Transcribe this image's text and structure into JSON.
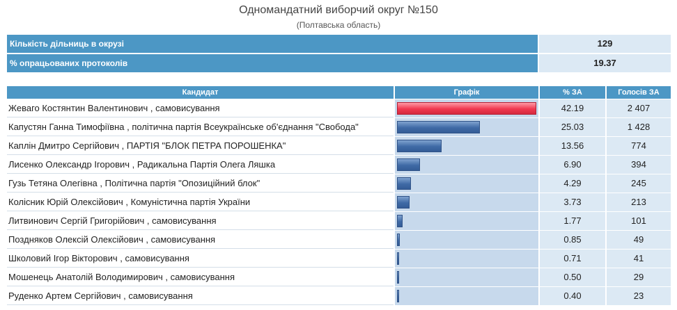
{
  "header": {
    "title": "Одномандатний виборчий округ №150",
    "subtitle": "(Полтавська область)"
  },
  "summary": [
    {
      "label": "Кількість дільниць в окрузі",
      "value": "129"
    },
    {
      "label": "% опрацьованих протоколів",
      "value": "19.37"
    }
  ],
  "table": {
    "headers": {
      "name": "Кандидат",
      "graph": "Графік",
      "pct": "% ЗА",
      "votes": "Голосів ЗА"
    },
    "leader_color": "#f0384f",
    "bar_color": "#3f6aa6",
    "rows": [
      {
        "name": "Жеваго Костянтин Валентинович , самовисування",
        "pct": "42.19",
        "votes": "2 407"
      },
      {
        "name": "Капустян Ганна Тимофіївна , політична партія Всеукраїнське об'єднання \"Свобода\"",
        "pct": "25.03",
        "votes": "1 428"
      },
      {
        "name": "Каплін Дмитро Сергійович , ПАРТІЯ \"БЛОК ПЕТРА ПОРОШЕНКА\"",
        "pct": "13.56",
        "votes": "774"
      },
      {
        "name": "Лисенко Олександр Ігорович , Радикальна Партія Олега Ляшка",
        "pct": "6.90",
        "votes": "394"
      },
      {
        "name": "Гузь Тетяна Олегівна , Політична партія \"Опозиційний блок\"",
        "pct": "4.29",
        "votes": "245"
      },
      {
        "name": "Колісник Юрій Олексійович , Комуністична партія України",
        "pct": "3.73",
        "votes": "213"
      },
      {
        "name": "Литвинович Сергій Григорійович , самовисування",
        "pct": "1.77",
        "votes": "101"
      },
      {
        "name": "Поздняков Олексій Олексійович , самовисування",
        "pct": "0.85",
        "votes": "49"
      },
      {
        "name": "Школовий Ігор Вікторович , самовисування",
        "pct": "0.71",
        "votes": "41"
      },
      {
        "name": "Мошенець Анатолій Володимирович , самовисування",
        "pct": "0.50",
        "votes": "29"
      },
      {
        "name": "Руденко Артем Сергійович , самовисування",
        "pct": "0.40",
        "votes": "23"
      }
    ]
  }
}
